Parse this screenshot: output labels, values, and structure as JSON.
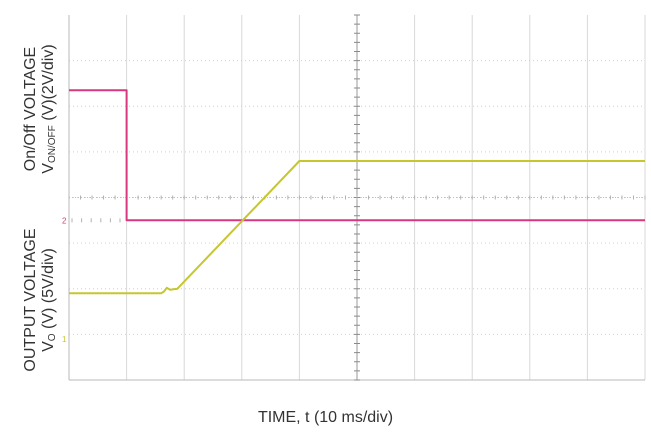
{
  "chart_data": {
    "type": "line",
    "xlabel": "TIME, t (10 ms/div)",
    "x_divisions": 10,
    "x_unit": "ms",
    "ms_per_div": 10,
    "grid": true,
    "channels": [
      {
        "id": "on_off",
        "label_line1": "On/Off VOLTAGE",
        "label_line2_pre": "V",
        "label_line2_sub": "ON/OFF",
        "label_line2_post": " (V)(2V/div)",
        "volts_per_div": 2,
        "color": "#d6387f",
        "marker": "2",
        "divisions": 4,
        "ylim": [
          0,
          8
        ],
        "points": [
          [
            0,
            5.7
          ],
          [
            10,
            5.7
          ],
          [
            10,
            0.0
          ],
          [
            100,
            0.0
          ]
        ]
      },
      {
        "id": "output",
        "label_line1": "OUTPUT VOLTAGE",
        "label_line2_pre": "V",
        "label_line2_sub": "O",
        "label_line2_post": " (V) (5V/div)",
        "volts_per_div": 5,
        "color": "#c6c62f",
        "marker": "1",
        "divisions": 4,
        "ylim": [
          0,
          20
        ],
        "points": [
          [
            0,
            5.0
          ],
          [
            16,
            5.0
          ],
          [
            16.5,
            5.2
          ],
          [
            17,
            5.6
          ],
          [
            17.5,
            5.4
          ],
          [
            18.8,
            5.5
          ],
          [
            40,
            19.5
          ],
          [
            100,
            19.5
          ]
        ]
      }
    ]
  }
}
